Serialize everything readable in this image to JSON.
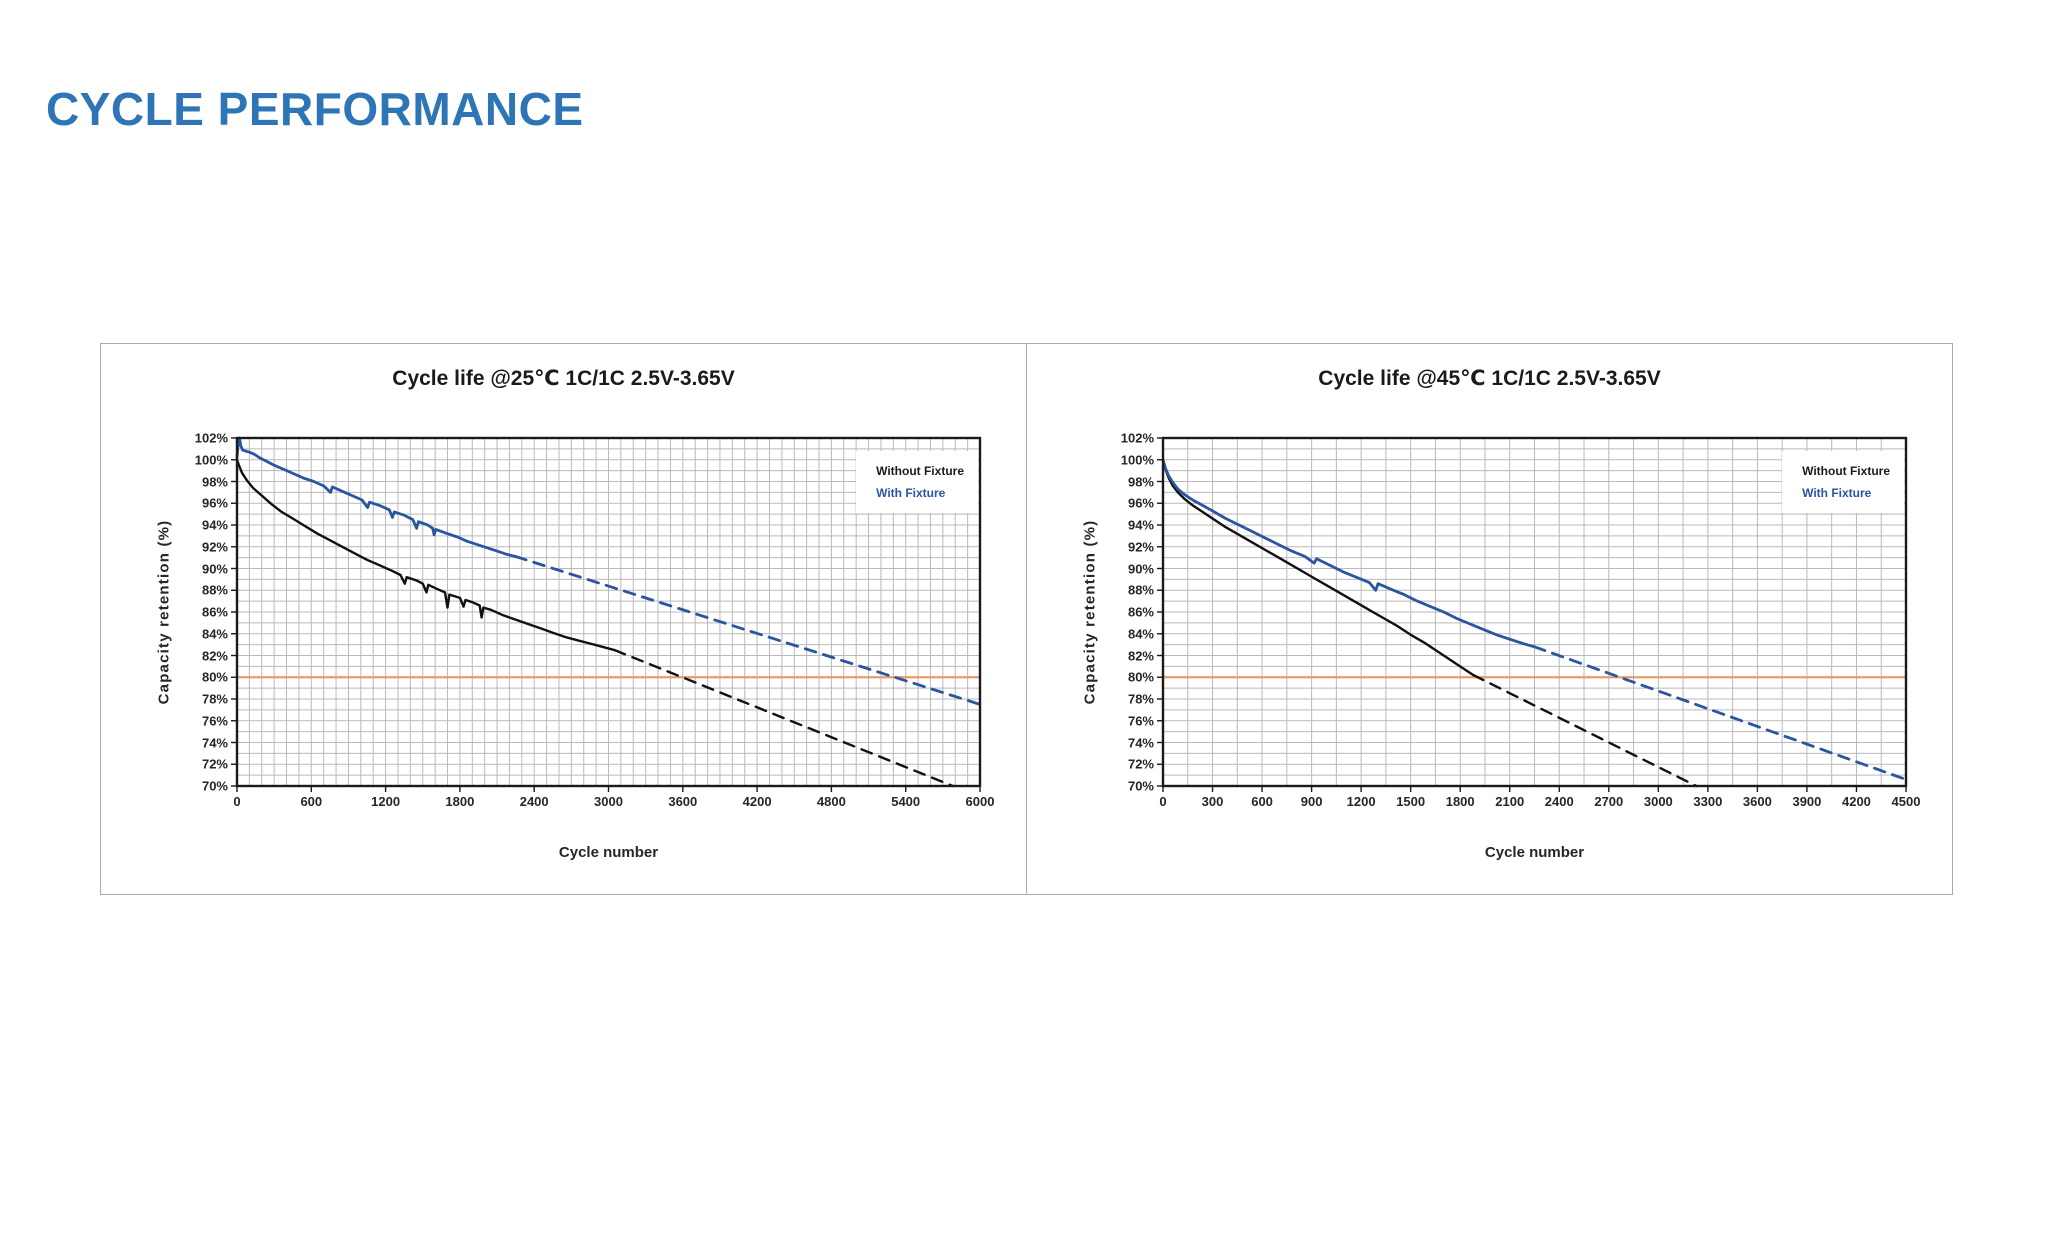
{
  "slide": {
    "title": "CYCLE PERFORMANCE",
    "title_color": "#2E75B6",
    "background": "#ffffff"
  },
  "chart_data": [
    {
      "type": "line",
      "title": "Cycle life @25℃ 1C/1C 2.5V-3.65V",
      "xlabel": "Cycle number",
      "ylabel": "Capacity retention (%)",
      "xlim": [
        0,
        6000
      ],
      "ylim": [
        70,
        102
      ],
      "x_major_ticks": [
        0,
        600,
        1200,
        1800,
        2400,
        3000,
        3600,
        4200,
        4800,
        5400,
        6000
      ],
      "x_minor_step": 100,
      "y_major_step": 2,
      "y_minor_step": 1,
      "y_tick_suffix": "%",
      "grid": {
        "color": "#b9b9b9",
        "on": true
      },
      "frame_color": "#1a1a1a",
      "threshold_line": {
        "value": 80,
        "color": "#E89A6B"
      },
      "legend": {
        "position": "top-right",
        "items": [
          {
            "label": "Without Fixture",
            "color": "#1a1a1a"
          },
          {
            "label": "With Fixture",
            "color": "#2B55A0"
          }
        ]
      },
      "series": [
        {
          "name": "Without Fixture (measured)",
          "color": "#111111",
          "style": "solid",
          "width": 2.4,
          "points": [
            [
              0,
              100
            ],
            [
              15,
              99.5
            ],
            [
              40,
              98.8
            ],
            [
              80,
              98.1
            ],
            [
              130,
              97.4
            ],
            [
              200,
              96.7
            ],
            [
              280,
              95.9
            ],
            [
              360,
              95.2
            ],
            [
              450,
              94.6
            ],
            [
              550,
              93.9
            ],
            [
              650,
              93.2
            ],
            [
              750,
              92.6
            ],
            [
              850,
              92.0
            ],
            [
              950,
              91.4
            ],
            [
              1050,
              90.8
            ],
            [
              1150,
              90.3
            ],
            [
              1250,
              89.8
            ],
            [
              1320,
              89.4
            ],
            [
              1355,
              88.6
            ],
            [
              1370,
              89.2
            ],
            [
              1450,
              88.9
            ],
            [
              1500,
              88.6
            ],
            [
              1530,
              87.8
            ],
            [
              1545,
              88.5
            ],
            [
              1620,
              88.1
            ],
            [
              1680,
              87.8
            ],
            [
              1700,
              86.4
            ],
            [
              1715,
              87.6
            ],
            [
              1800,
              87.3
            ],
            [
              1830,
              86.5
            ],
            [
              1845,
              87.1
            ],
            [
              1900,
              86.9
            ],
            [
              1960,
              86.6
            ],
            [
              1975,
              85.5
            ],
            [
              1990,
              86.4
            ],
            [
              2050,
              86.2
            ],
            [
              2150,
              85.7
            ],
            [
              2250,
              85.3
            ],
            [
              2350,
              84.9
            ],
            [
              2450,
              84.5
            ],
            [
              2550,
              84.1
            ],
            [
              2650,
              83.7
            ],
            [
              2750,
              83.4
            ],
            [
              2850,
              83.1
            ],
            [
              2950,
              82.8
            ],
            [
              3050,
              82.5
            ]
          ]
        },
        {
          "name": "Without Fixture (projected)",
          "color": "#111111",
          "style": "dashed",
          "width": 2.4,
          "points": [
            [
              3050,
              82.5
            ],
            [
              5780,
              70
            ]
          ]
        },
        {
          "name": "With Fixture (measured)",
          "color": "#2B55A0",
          "style": "solid",
          "width": 2.8,
          "points": [
            [
              0,
              100.2
            ],
            [
              10,
              101.5
            ],
            [
              20,
              102.0
            ],
            [
              30,
              101.3
            ],
            [
              45,
              100.9
            ],
            [
              70,
              100.8
            ],
            [
              100,
              100.7
            ],
            [
              140,
              100.5
            ],
            [
              180,
              100.2
            ],
            [
              230,
              99.9
            ],
            [
              300,
              99.5
            ],
            [
              380,
              99.1
            ],
            [
              460,
              98.7
            ],
            [
              540,
              98.3
            ],
            [
              620,
              98.0
            ],
            [
              700,
              97.6
            ],
            [
              755,
              97.0
            ],
            [
              770,
              97.5
            ],
            [
              850,
              97.1
            ],
            [
              930,
              96.7
            ],
            [
              1010,
              96.3
            ],
            [
              1055,
              95.6
            ],
            [
              1070,
              96.1
            ],
            [
              1150,
              95.8
            ],
            [
              1230,
              95.4
            ],
            [
              1255,
              94.7
            ],
            [
              1270,
              95.2
            ],
            [
              1350,
              94.9
            ],
            [
              1420,
              94.5
            ],
            [
              1450,
              93.7
            ],
            [
              1465,
              94.3
            ],
            [
              1540,
              94.0
            ],
            [
              1580,
              93.7
            ],
            [
              1592,
              93.1
            ],
            [
              1605,
              93.6
            ],
            [
              1700,
              93.2
            ],
            [
              1780,
              92.9
            ],
            [
              1860,
              92.5
            ],
            [
              1940,
              92.2
            ],
            [
              2020,
              91.9
            ],
            [
              2100,
              91.6
            ],
            [
              2180,
              91.3
            ],
            [
              2250,
              91.1
            ]
          ]
        },
        {
          "name": "With Fixture (projected)",
          "color": "#2B55A0",
          "style": "dashed",
          "width": 2.8,
          "points": [
            [
              2250,
              91.1
            ],
            [
              6000,
              77.5
            ]
          ]
        }
      ]
    },
    {
      "type": "line",
      "title": "Cycle life @45℃ 1C/1C 2.5V-3.65V",
      "xlabel": "Cycle number",
      "ylabel": "Capacity retention (%)",
      "xlim": [
        0,
        4500
      ],
      "ylim": [
        70,
        102
      ],
      "x_major_ticks": [
        0,
        300,
        600,
        900,
        1200,
        1500,
        1800,
        2100,
        2400,
        2700,
        3000,
        3300,
        3600,
        3900,
        4200,
        4500
      ],
      "x_minor_step": 150,
      "y_major_step": 2,
      "y_minor_step": 1,
      "y_tick_suffix": "%",
      "grid": {
        "color": "#b9b9b9",
        "on": true
      },
      "frame_color": "#1a1a1a",
      "threshold_line": {
        "value": 80,
        "color": "#E89A6B"
      },
      "legend": {
        "position": "top-right",
        "items": [
          {
            "label": "Without Fixture",
            "color": "#1a1a1a"
          },
          {
            "label": "With Fixture",
            "color": "#2B55A0"
          }
        ]
      },
      "series": [
        {
          "name": "Without Fixture (measured)",
          "color": "#111111",
          "style": "solid",
          "width": 2.4,
          "points": [
            [
              0,
              100
            ],
            [
              15,
              99.1
            ],
            [
              35,
              98.3
            ],
            [
              60,
              97.6
            ],
            [
              90,
              97.0
            ],
            [
              130,
              96.4
            ],
            [
              180,
              95.8
            ],
            [
              240,
              95.2
            ],
            [
              300,
              94.6
            ],
            [
              380,
              93.8
            ],
            [
              460,
              93.1
            ],
            [
              540,
              92.4
            ],
            [
              620,
              91.7
            ],
            [
              700,
              91.0
            ],
            [
              780,
              90.3
            ],
            [
              860,
              89.6
            ],
            [
              940,
              88.9
            ],
            [
              1020,
              88.2
            ],
            [
              1100,
              87.5
            ],
            [
              1180,
              86.8
            ],
            [
              1260,
              86.1
            ],
            [
              1340,
              85.4
            ],
            [
              1420,
              84.7
            ],
            [
              1500,
              83.9
            ],
            [
              1580,
              83.2
            ],
            [
              1660,
              82.4
            ],
            [
              1740,
              81.6
            ],
            [
              1820,
              80.8
            ],
            [
              1880,
              80.2
            ]
          ]
        },
        {
          "name": "Without Fixture (projected)",
          "color": "#111111",
          "style": "dashed",
          "width": 2.4,
          "points": [
            [
              1880,
              80.2
            ],
            [
              3230,
              70
            ]
          ]
        },
        {
          "name": "With Fixture (measured)",
          "color": "#2B55A0",
          "style": "solid",
          "width": 2.8,
          "points": [
            [
              0,
              100
            ],
            [
              15,
              99.2
            ],
            [
              35,
              98.5
            ],
            [
              60,
              97.9
            ],
            [
              90,
              97.3
            ],
            [
              130,
              96.8
            ],
            [
              180,
              96.3
            ],
            [
              240,
              95.8
            ],
            [
              300,
              95.3
            ],
            [
              380,
              94.6
            ],
            [
              460,
              94.0
            ],
            [
              540,
              93.4
            ],
            [
              620,
              92.8
            ],
            [
              700,
              92.2
            ],
            [
              780,
              91.6
            ],
            [
              860,
              91.1
            ],
            [
              915,
              90.5
            ],
            [
              930,
              90.9
            ],
            [
              1010,
              90.3
            ],
            [
              1090,
              89.7
            ],
            [
              1170,
              89.2
            ],
            [
              1250,
              88.7
            ],
            [
              1288,
              88.0
            ],
            [
              1302,
              88.6
            ],
            [
              1380,
              88.1
            ],
            [
              1460,
              87.6
            ],
            [
              1540,
              87.0
            ],
            [
              1620,
              86.5
            ],
            [
              1700,
              86.0
            ],
            [
              1780,
              85.4
            ],
            [
              1860,
              84.9
            ],
            [
              1940,
              84.4
            ],
            [
              2020,
              83.9
            ],
            [
              2100,
              83.5
            ],
            [
              2180,
              83.1
            ],
            [
              2250,
              82.8
            ]
          ]
        },
        {
          "name": "With Fixture (projected)",
          "color": "#2B55A0",
          "style": "dashed",
          "width": 2.8,
          "points": [
            [
              2250,
              82.8
            ],
            [
              4500,
              70.6
            ]
          ]
        }
      ]
    }
  ]
}
